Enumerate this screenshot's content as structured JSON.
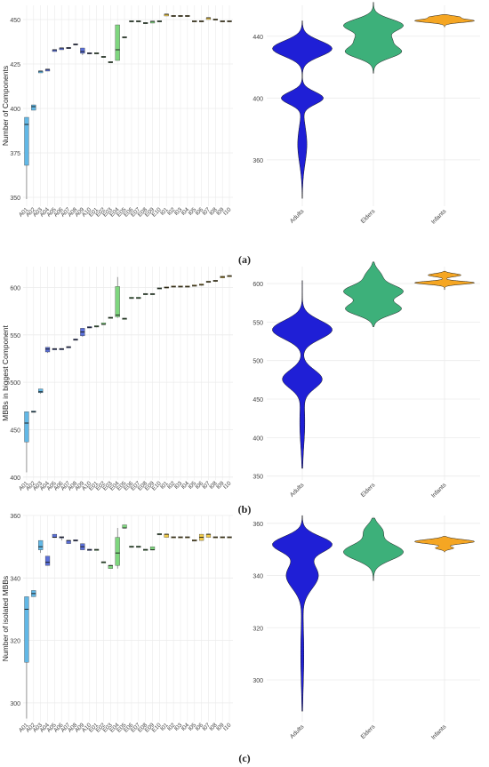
{
  "panel_labels": [
    "(a)",
    "(b)",
    "(c)"
  ],
  "colors": {
    "Adults": "#1f1fd6",
    "Adults_box": "#62b8e6",
    "Adults_box2": "#5a6fd8",
    "Elders": "#3db07a",
    "Elders_box": "#7ed67e",
    "Infants": "#f5a623",
    "Infants_box": "#f2cc4a",
    "grid": "#ebebeb"
  },
  "chart_data": [
    {
      "type": "box",
      "panel": "(a)",
      "ylabel": "Number of Components",
      "categories": [
        "A01",
        "A02",
        "A03",
        "A04",
        "A05",
        "A06",
        "A07",
        "A08",
        "A09",
        "A10",
        "E01",
        "E02",
        "E03",
        "E04",
        "E05",
        "E06",
        "E07",
        "E08",
        "E09",
        "E10",
        "I01",
        "I02",
        "I03",
        "I04",
        "I05",
        "I06",
        "I07",
        "I08",
        "I09",
        "I10"
      ],
      "groups": [
        "A",
        "A",
        "A",
        "A",
        "A",
        "A",
        "A",
        "A",
        "A",
        "A",
        "E",
        "E",
        "E",
        "E",
        "E",
        "E",
        "E",
        "E",
        "E",
        "E",
        "I",
        "I",
        "I",
        "I",
        "I",
        "I",
        "I",
        "I",
        "I",
        "I"
      ],
      "boxes": [
        [
          349,
          368,
          391,
          395,
          395
        ],
        [
          399,
          399,
          401,
          402,
          402
        ],
        [
          420,
          420,
          421,
          421,
          421
        ],
        [
          421,
          421,
          422,
          422,
          422
        ],
        [
          432,
          432,
          433,
          433,
          433
        ],
        [
          433,
          433,
          434,
          434,
          434
        ],
        [
          434,
          434,
          434,
          434,
          434
        ],
        [
          436,
          436,
          436,
          436,
          436
        ],
        [
          430,
          431,
          432,
          434,
          434
        ],
        [
          431,
          431,
          431,
          431,
          431
        ],
        [
          431,
          431,
          431,
          431,
          431
        ],
        [
          429,
          429,
          429,
          429,
          429
        ],
        [
          426,
          426,
          426,
          426,
          426
        ],
        [
          427,
          427,
          433,
          447,
          447
        ],
        [
          440,
          440,
          440,
          440,
          440
        ],
        [
          449,
          449,
          449,
          449,
          449
        ],
        [
          449,
          449,
          449,
          449,
          449
        ],
        [
          448,
          448,
          448,
          448,
          448
        ],
        [
          448,
          448,
          449,
          449,
          449
        ],
        [
          449,
          449,
          449,
          449,
          449
        ],
        [
          452,
          452,
          453,
          453,
          453
        ],
        [
          452,
          452,
          452,
          452,
          452
        ],
        [
          452,
          452,
          452,
          452,
          452
        ],
        [
          452,
          452,
          452,
          452,
          452
        ],
        [
          449,
          449,
          449,
          449,
          449
        ],
        [
          449,
          449,
          449,
          449,
          449
        ],
        [
          450,
          450,
          451,
          451,
          451
        ],
        [
          450,
          450,
          450,
          450,
          450
        ],
        [
          449,
          449,
          449,
          449,
          449
        ],
        [
          449,
          449,
          449,
          449,
          449
        ]
      ],
      "ylim": [
        345,
        458
      ],
      "yticks": [
        350,
        375,
        400,
        425,
        450
      ]
    },
    {
      "type": "violin",
      "panel": "(a)",
      "categories": [
        "Adults",
        "Elders",
        "Infants"
      ],
      "ylim": [
        330,
        460
      ],
      "yticks": [
        360,
        400,
        440
      ],
      "violins": [
        {
          "name": "Adults",
          "min": 335,
          "max": 450,
          "modes": [
            [
              432,
              5,
              1
            ],
            [
              400,
              4,
              0.7
            ],
            [
              370,
              12,
              0.15
            ]
          ]
        },
        {
          "name": "Elders",
          "min": 416,
          "max": 462,
          "modes": [
            [
              447,
              4,
              0.8
            ],
            [
              430,
              4,
              0.75
            ],
            [
              438,
              3,
              0.35
            ]
          ]
        },
        {
          "name": "Infants",
          "min": 446,
          "max": 454,
          "modes": [
            [
              450,
              1.1,
              1.0
            ],
            [
              452.5,
              0.8,
              0.45
            ]
          ]
        }
      ]
    },
    {
      "type": "box",
      "panel": "(b)",
      "ylabel": "MBBs in biggest Component",
      "categories": [
        "A01",
        "A02",
        "A03",
        "A04",
        "A05",
        "A06",
        "A07",
        "A08",
        "A09",
        "A10",
        "E01",
        "E02",
        "E03",
        "E04",
        "E05",
        "E06",
        "E07",
        "E08",
        "E09",
        "E10",
        "I01",
        "I02",
        "I03",
        "I04",
        "I05",
        "I06",
        "I07",
        "I08",
        "I09",
        "I10"
      ],
      "groups": [
        "A",
        "A",
        "A",
        "A",
        "A",
        "A",
        "A",
        "A",
        "A",
        "A",
        "E",
        "E",
        "E",
        "E",
        "E",
        "E",
        "E",
        "E",
        "E",
        "E",
        "I",
        "I",
        "I",
        "I",
        "I",
        "I",
        "I",
        "I",
        "I",
        "I"
      ],
      "boxes": [
        [
          405,
          437,
          457,
          469,
          469
        ],
        [
          469,
          469,
          469,
          469,
          469
        ],
        [
          488,
          489,
          490,
          493,
          493
        ],
        [
          531,
          532,
          535,
          537,
          537
        ],
        [
          535,
          535,
          535,
          535,
          535
        ],
        [
          535,
          535,
          535,
          535,
          535
        ],
        [
          537,
          537,
          537,
          537,
          537
        ],
        [
          545,
          545,
          545,
          545,
          545
        ],
        [
          548,
          549,
          553,
          557,
          557
        ],
        [
          558,
          558,
          558,
          558,
          558
        ],
        [
          558,
          558,
          559,
          559,
          559
        ],
        [
          561,
          561,
          561,
          562,
          562
        ],
        [
          568,
          568,
          568,
          568,
          568
        ],
        [
          568,
          569,
          571,
          601,
          611
        ],
        [
          567,
          567,
          567,
          567,
          567
        ],
        [
          589,
          589,
          589,
          589,
          589
        ],
        [
          589,
          589,
          589,
          589,
          589
        ],
        [
          593,
          593,
          593,
          593,
          593
        ],
        [
          593,
          593,
          593,
          593,
          593
        ],
        [
          599,
          599,
          599,
          599,
          599
        ],
        [
          600,
          600,
          600,
          600,
          600
        ],
        [
          601,
          601,
          601,
          601,
          601
        ],
        [
          601,
          601,
          601,
          601,
          601
        ],
        [
          601,
          601,
          601,
          601,
          601
        ],
        [
          602,
          602,
          602,
          602,
          602
        ],
        [
          602,
          602,
          603,
          603,
          603
        ],
        [
          606,
          606,
          606,
          606,
          606
        ],
        [
          606,
          606,
          607,
          607,
          607
        ],
        [
          610,
          610,
          611,
          612,
          612
        ],
        [
          612,
          612,
          612,
          612,
          612
        ]
      ],
      "ylim": [
        397,
        622
      ],
      "yticks": [
        400,
        450,
        500,
        550,
        600
      ]
    },
    {
      "type": "violin",
      "panel": "(b)",
      "categories": [
        "Adults",
        "Elders",
        "Infants"
      ],
      "ylim": [
        345,
        622
      ],
      "yticks": [
        350,
        400,
        450,
        500,
        550,
        600
      ],
      "violins": [
        {
          "name": "Adults",
          "min": 360,
          "max": 604,
          "modes": [
            [
              540,
              12,
              1
            ],
            [
              476,
              12,
              0.65
            ],
            [
              420,
              30,
              0.08
            ]
          ]
        },
        {
          "name": "Elders",
          "min": 544,
          "max": 628,
          "modes": [
            [
              590,
              8,
              0.95
            ],
            [
              567,
              8,
              0.9
            ],
            [
              610,
              8,
              0.25
            ]
          ]
        },
        {
          "name": "Infants",
          "min": 592,
          "max": 616,
          "modes": [
            [
              601,
              2,
              1.0
            ],
            [
              611,
              2,
              0.55
            ]
          ]
        }
      ]
    },
    {
      "type": "box",
      "panel": "(c)",
      "ylabel": "Number of isolated MBBs",
      "categories": [
        "A01",
        "A02",
        "A03",
        "A04",
        "A05",
        "A06",
        "A07",
        "A08",
        "A09",
        "A10",
        "E01",
        "E02",
        "E03",
        "E04",
        "E05",
        "E06",
        "E07",
        "E08",
        "E09",
        "E10",
        "I01",
        "I02",
        "I03",
        "I04",
        "I05",
        "I06",
        "I07",
        "I08",
        "I09",
        "I10"
      ],
      "groups": [
        "A",
        "A",
        "A",
        "A",
        "A",
        "A",
        "A",
        "A",
        "A",
        "A",
        "E",
        "E",
        "E",
        "E",
        "E",
        "E",
        "E",
        "E",
        "E",
        "E",
        "I",
        "I",
        "I",
        "I",
        "I",
        "I",
        "I",
        "I",
        "I",
        "I"
      ],
      "boxes": [
        [
          295,
          313,
          330,
          334,
          334
        ],
        [
          334,
          334,
          335,
          336,
          336
        ],
        [
          348,
          349,
          350,
          352,
          352
        ],
        [
          344,
          344,
          345,
          347,
          347
        ],
        [
          353,
          353,
          353,
          354,
          354
        ],
        [
          352,
          353,
          353,
          353,
          353
        ],
        [
          351,
          351,
          352,
          352,
          352
        ],
        [
          352,
          352,
          352,
          352,
          352
        ],
        [
          349,
          349,
          350,
          351,
          351
        ],
        [
          349,
          349,
          349,
          349,
          349
        ],
        [
          349,
          349,
          349,
          349,
          349
        ],
        [
          345,
          345,
          345,
          345,
          345
        ],
        [
          343,
          343,
          344,
          344,
          344
        ],
        [
          343,
          344,
          348,
          353,
          356
        ],
        [
          356,
          356,
          356,
          357,
          357
        ],
        [
          350,
          350,
          350,
          350,
          350
        ],
        [
          350,
          350,
          350,
          350,
          350
        ],
        [
          349,
          349,
          349,
          349,
          349
        ],
        [
          349,
          349,
          349,
          350,
          350
        ],
        [
          354,
          354,
          354,
          354,
          354
        ],
        [
          353,
          353,
          354,
          354,
          354
        ],
        [
          353,
          353,
          353,
          353,
          353
        ],
        [
          353,
          353,
          353,
          353,
          353
        ],
        [
          353,
          353,
          353,
          353,
          353
        ],
        [
          352,
          352,
          352,
          352,
          352
        ],
        [
          352,
          352,
          353,
          354,
          354
        ],
        [
          353,
          353,
          354,
          354,
          354
        ],
        [
          353,
          353,
          353,
          353,
          353
        ],
        [
          353,
          353,
          353,
          353,
          353
        ],
        [
          353,
          353,
          353,
          353,
          353
        ]
      ],
      "ylim": [
        294,
        360
      ],
      "yticks": [
        300,
        320,
        340,
        360
      ]
    },
    {
      "type": "violin",
      "panel": "(c)",
      "categories": [
        "Adults",
        "Elders",
        "Infants"
      ],
      "ylim": [
        284,
        363
      ],
      "yticks": [
        300,
        320,
        340,
        360
      ],
      "violins": [
        {
          "name": "Adults",
          "min": 288,
          "max": 363,
          "modes": [
            [
              352,
              3,
              1
            ],
            [
              340,
              5,
              0.55
            ],
            [
              310,
              12,
              0.05
            ]
          ]
        },
        {
          "name": "Elders",
          "min": 338,
          "max": 362,
          "modes": [
            [
              349,
              3,
              1.0
            ],
            [
              357,
              2.5,
              0.3
            ]
          ]
        },
        {
          "name": "Infants",
          "min": 349,
          "max": 355,
          "modes": [
            [
              353,
              0.8,
              1.0
            ],
            [
              350.5,
              0.5,
              0.3
            ]
          ]
        }
      ]
    }
  ]
}
